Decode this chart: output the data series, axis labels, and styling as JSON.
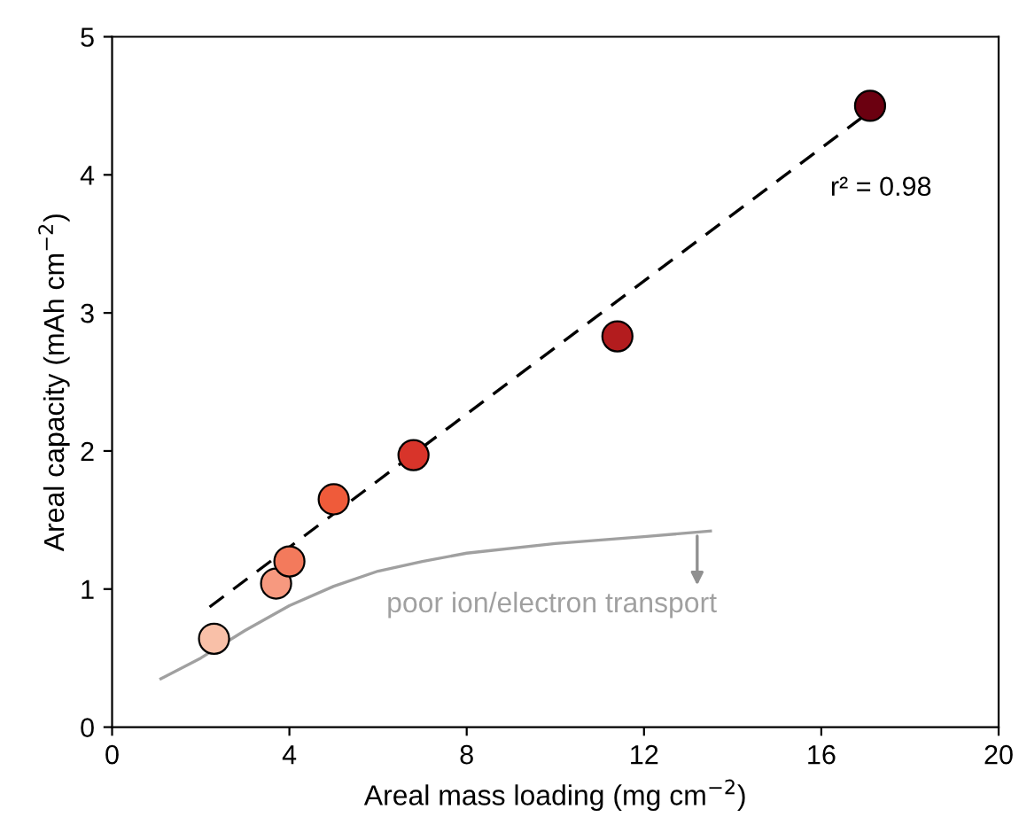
{
  "chart_data": {
    "type": "scatter",
    "xlabel": "Areal mass loading (mg cm$^{−2}$)",
    "ylabel": "Areal capacity (mAh cm$^{−2}$)",
    "xlim": [
      0,
      20
    ],
    "ylim": [
      0,
      5
    ],
    "xticks": [
      0,
      4,
      8,
      12,
      16,
      20
    ],
    "yticks": [
      0,
      1,
      2,
      3,
      4,
      5
    ],
    "grid": false,
    "series": [
      {
        "type": "line",
        "line_style": "solid",
        "color": "#a0a0a0",
        "x": [
          1.1,
          2,
          3,
          4,
          5,
          6,
          7,
          8,
          10,
          12,
          13.5
        ],
        "values": [
          0.35,
          0.5,
          0.7,
          0.88,
          1.02,
          1.13,
          1.2,
          1.26,
          1.33,
          1.38,
          1.42
        ]
      },
      {
        "type": "line",
        "line_style": "dashed",
        "color": "#000000",
        "x": [
          2.2,
          17.1
        ],
        "values": [
          0.87,
          4.46
        ]
      },
      {
        "marker": "circle",
        "x": [
          2.3,
          3.7,
          4.0,
          5.0,
          6.8,
          11.4,
          17.1
        ],
        "values": [
          0.64,
          1.04,
          1.2,
          1.65,
          1.97,
          2.83,
          4.5
        ],
        "colors": [
          "#f9c0a8",
          "#f7997f",
          "#f37a5c",
          "#ef5b3a",
          "#d8342a",
          "#b31c1e",
          "#6b0010"
        ]
      }
    ],
    "annotations": [
      "r² = 0.98",
      {
        "text": "poor ion/electron transport",
        "x": 13.2,
        "y": 1.42
      }
    ]
  }
}
